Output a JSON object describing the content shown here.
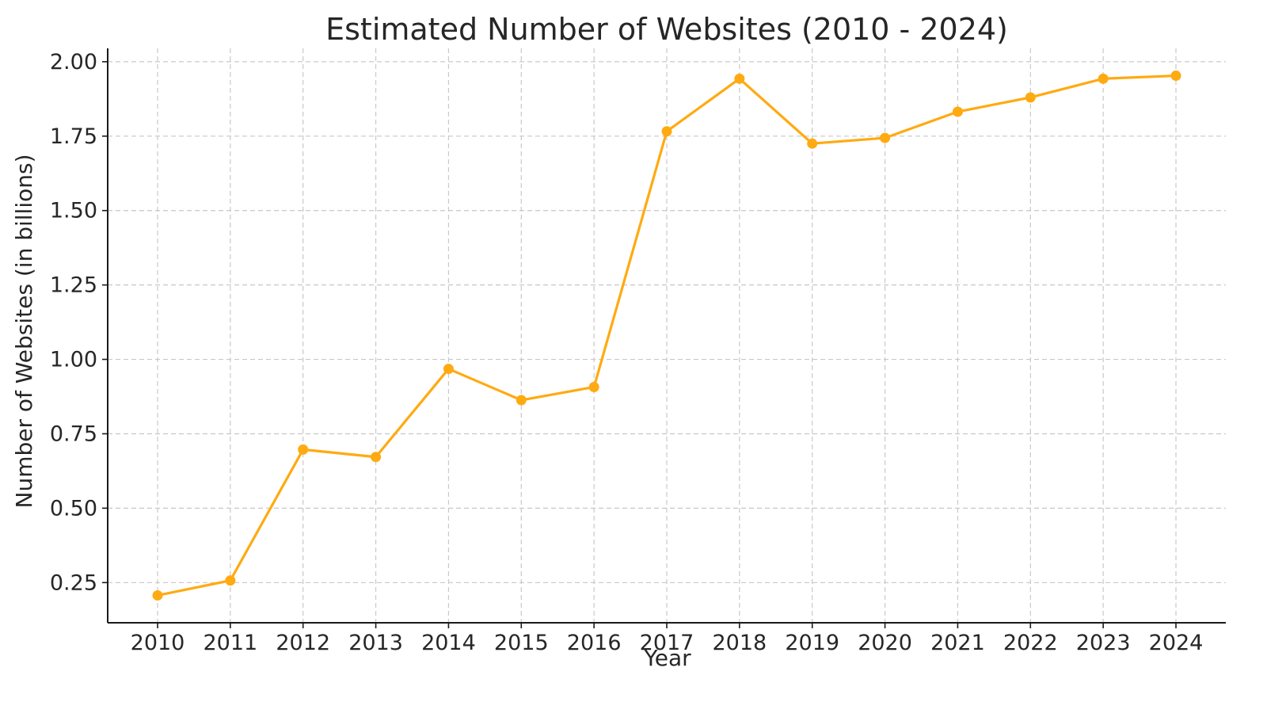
{
  "chart_data": {
    "type": "line",
    "title": "Estimated Number of Websites (2010 - 2024)",
    "xlabel": "Year",
    "ylabel": "Number of Websites (in billions)",
    "x": [
      "2010",
      "2011",
      "2012",
      "2013",
      "2014",
      "2015",
      "2016",
      "2017",
      "2018",
      "2019",
      "2020",
      "2021",
      "2022",
      "2023",
      "2024"
    ],
    "series": [
      {
        "name": "",
        "values": [
          0.207,
          0.257,
          0.697,
          0.672,
          0.968,
          0.863,
          0.907,
          1.766,
          1.943,
          1.725,
          1.744,
          1.832,
          1.88,
          1.943,
          1.953
        ]
      }
    ],
    "yticks": [
      "0.25",
      "0.50",
      "0.75",
      "1.00",
      "1.25",
      "1.50",
      "1.75",
      "2.00"
    ],
    "ylim": [
      0.115,
      2.045
    ],
    "grid": true,
    "legend": "none",
    "line_color": "#FFAA11",
    "marker": "circle"
  }
}
